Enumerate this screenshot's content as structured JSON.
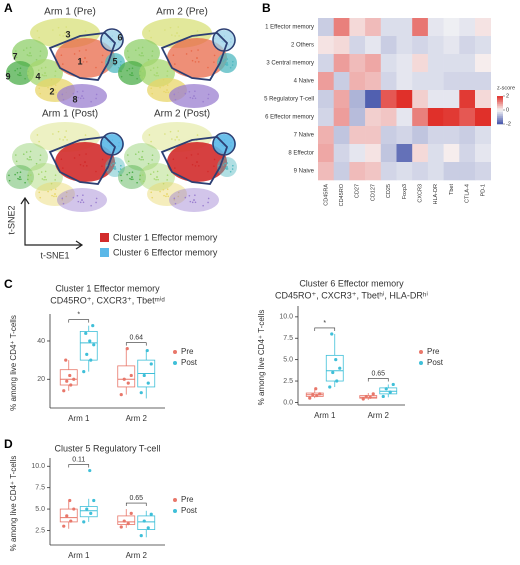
{
  "chart_data": [
    {
      "type": "tsne",
      "panel": "A",
      "titles": [
        "Arm 1 (Pre)",
        "Arm 2 (Pre)",
        "Arm 1 (Post)",
        "Arm 2 (Post)"
      ],
      "cluster_labels": [
        "3",
        "6",
        "7",
        "1",
        "5",
        "9",
        "4",
        "2",
        "8"
      ],
      "x_label": "t-SNE1",
      "y_label": "t-SNE2",
      "legend": [
        {
          "name": "Cluster 1 Effector memory",
          "color": "#d22b2b"
        },
        {
          "name": "Cluster 6 Effector memory",
          "color": "#5bb8e8"
        }
      ]
    },
    {
      "type": "heatmap",
      "panel": "B",
      "rows": [
        "1 Effector memory",
        "2 Others",
        "3 Central memory",
        "4 Naive",
        "5 Regulatory T-cell",
        "6 Effector memory",
        "7 Naive",
        "8 Effector",
        "9 Naive"
      ],
      "columns": [
        "CD45RA",
        "CD45RO",
        "CD27",
        "CD127",
        "CD25",
        "Foxp3",
        "CXCR3",
        "HLA-DR",
        "Tbet",
        "CTLA-4",
        "PD-1"
      ],
      "values": [
        [
          -0.5,
          1.2,
          0.3,
          0.6,
          -0.3,
          -0.3,
          1.3,
          -0.2,
          -0.1,
          -0.2,
          0.2
        ],
        [
          0.2,
          0.3,
          -0.4,
          -0.2,
          -0.5,
          -0.3,
          -0.4,
          -0.3,
          -0.2,
          -0.4,
          -0.3
        ],
        [
          -0.4,
          0.9,
          0.6,
          0.8,
          -0.3,
          -0.2,
          0.3,
          -0.3,
          -0.3,
          -0.3,
          0.1
        ],
        [
          0.9,
          -0.5,
          0.7,
          0.6,
          -0.4,
          -0.2,
          -0.3,
          -0.3,
          -0.4,
          -0.4,
          -0.4
        ],
        [
          -0.5,
          0.8,
          -0.8,
          -1.8,
          1.6,
          2.0,
          0.4,
          -0.2,
          -0.2,
          1.9,
          0.3
        ],
        [
          -0.4,
          0.9,
          -0.7,
          0.4,
          0.5,
          -0.2,
          1.2,
          2.0,
          1.9,
          1.6,
          2.2
        ],
        [
          0.7,
          -0.6,
          0.5,
          0.5,
          -0.5,
          -0.4,
          -0.6,
          -0.4,
          -0.4,
          -0.5,
          -0.3
        ],
        [
          0.8,
          -0.4,
          -0.2,
          0.2,
          -0.6,
          -1.6,
          0.3,
          -0.3,
          0.1,
          -0.4,
          -0.2
        ],
        [
          0.6,
          -0.5,
          0.6,
          0.5,
          -0.4,
          -0.3,
          -0.4,
          -0.3,
          -0.5,
          -0.5,
          -0.4
        ]
      ],
      "zlim": [
        -2,
        2
      ],
      "zticks": [
        -2,
        0,
        2
      ],
      "colorbar_title": "z-score",
      "colors": {
        "low": "#3f4fa8",
        "mid": "#f7f7f7",
        "high": "#e0302a"
      }
    },
    {
      "type": "box",
      "panel": "C",
      "title": "Cluster 1 Effector memory",
      "subtitle": "CD45RO⁺, CXCR3⁺, Tbetᵐⁱᵈ",
      "y_label": "% among live CD4⁺ T-cells",
      "categories": [
        "Arm 1",
        "Arm 2"
      ],
      "ylim": [
        5,
        52
      ],
      "yticks": [
        20,
        40
      ],
      "annotations": [
        "*",
        "0.64"
      ],
      "series": [
        {
          "name": "Pre",
          "color": "#e8776a",
          "boxes": [
            [
              14,
              17,
              20,
              25,
              30
            ],
            [
              12,
              16,
              20,
              27,
              36
            ]
          ],
          "points": [
            [
              14,
              17,
              19,
              20,
              22,
              30
            ],
            [
              12,
              18,
              20,
              22,
              36
            ]
          ]
        },
        {
          "name": "Post",
          "color": "#3fbfd8",
          "boxes": [
            [
              24,
              30,
              39,
              45,
              48
            ],
            [
              10,
              16,
              23,
              30,
              35
            ]
          ],
          "points": [
            [
              24,
              30,
              33,
              38,
              40,
              44,
              48
            ],
            [
              13,
              18,
              22,
              28,
              35
            ]
          ]
        }
      ]
    },
    {
      "type": "box",
      "title": "Cluster 6 Effector memory",
      "subtitle": "CD45RO⁺, CXCR3⁺, Tbetʰⁱ, HLA-DRʰⁱ",
      "y_label": "% among live CD4⁺ T-cells",
      "categories": [
        "Arm 1",
        "Arm 2"
      ],
      "ylim": [
        -0.3,
        10.8
      ],
      "yticks": [
        {
          "value": 0,
          "label": "0.0"
        },
        2.5,
        {
          "value": 5,
          "label": "5.0"
        },
        7.5,
        {
          "value": 10,
          "label": "10.0"
        }
      ],
      "annotations": [
        "*",
        "0.65"
      ],
      "series": [
        {
          "name": "Pre",
          "color": "#e8776a",
          "boxes": [
            [
              0.5,
              0.7,
              0.9,
              1.1,
              1.6
            ],
            [
              0.3,
              0.5,
              0.6,
              0.8,
              1.1
            ]
          ],
          "points": [
            [
              0.5,
              0.8,
              0.9,
              1.0,
              1.6
            ],
            [
              0.4,
              0.6,
              0.7,
              1.0
            ]
          ]
        },
        {
          "name": "Post",
          "color": "#3fbfd8",
          "boxes": [
            [
              1.8,
              2.5,
              3.7,
              5.5,
              8.0
            ],
            [
              0.6,
              1.0,
              1.3,
              1.7,
              2.1
            ]
          ],
          "points": [
            [
              1.8,
              2.5,
              3.5,
              4.0,
              5.0,
              8.0
            ],
            [
              0.7,
              1.2,
              1.6,
              2.1
            ]
          ]
        }
      ]
    },
    {
      "type": "box",
      "panel": "D",
      "title": "Cluster 5 Regulatory T-cell",
      "y_label": "% among live CD4⁺ T-cells",
      "categories": [
        "Arm 1",
        "Arm 2"
      ],
      "ylim": [
        0.8,
        10.5
      ],
      "yticks": [
        2.5,
        {
          "value": 5,
          "label": "5.0"
        },
        7.5,
        {
          "value": 10,
          "label": "10.0"
        }
      ],
      "annotations": [
        "0.11",
        "0.65"
      ],
      "series": [
        {
          "name": "Pre",
          "color": "#e8776a",
          "boxes": [
            [
              2.7,
              3.5,
              4.0,
              5.0,
              6.0
            ],
            [
              2.8,
              3.2,
              3.5,
              4.2,
              5.0
            ]
          ],
          "points": [
            [
              3.0,
              3.6,
              4.2,
              5.0,
              6.0
            ],
            [
              2.9,
              3.3,
              3.6,
              4.5
            ]
          ]
        },
        {
          "name": "Post",
          "color": "#3fbfd8",
          "boxes": [
            [
              3.5,
              4.1,
              4.8,
              5.3,
              6.2
            ],
            [
              1.7,
              2.6,
              3.5,
              4.2,
              4.8
            ]
          ],
          "points": [
            [
              3.5,
              4.5,
              5.0,
              6.0,
              9.5
            ],
            [
              1.9,
              2.8,
              3.6,
              4.4
            ]
          ]
        }
      ]
    }
  ]
}
